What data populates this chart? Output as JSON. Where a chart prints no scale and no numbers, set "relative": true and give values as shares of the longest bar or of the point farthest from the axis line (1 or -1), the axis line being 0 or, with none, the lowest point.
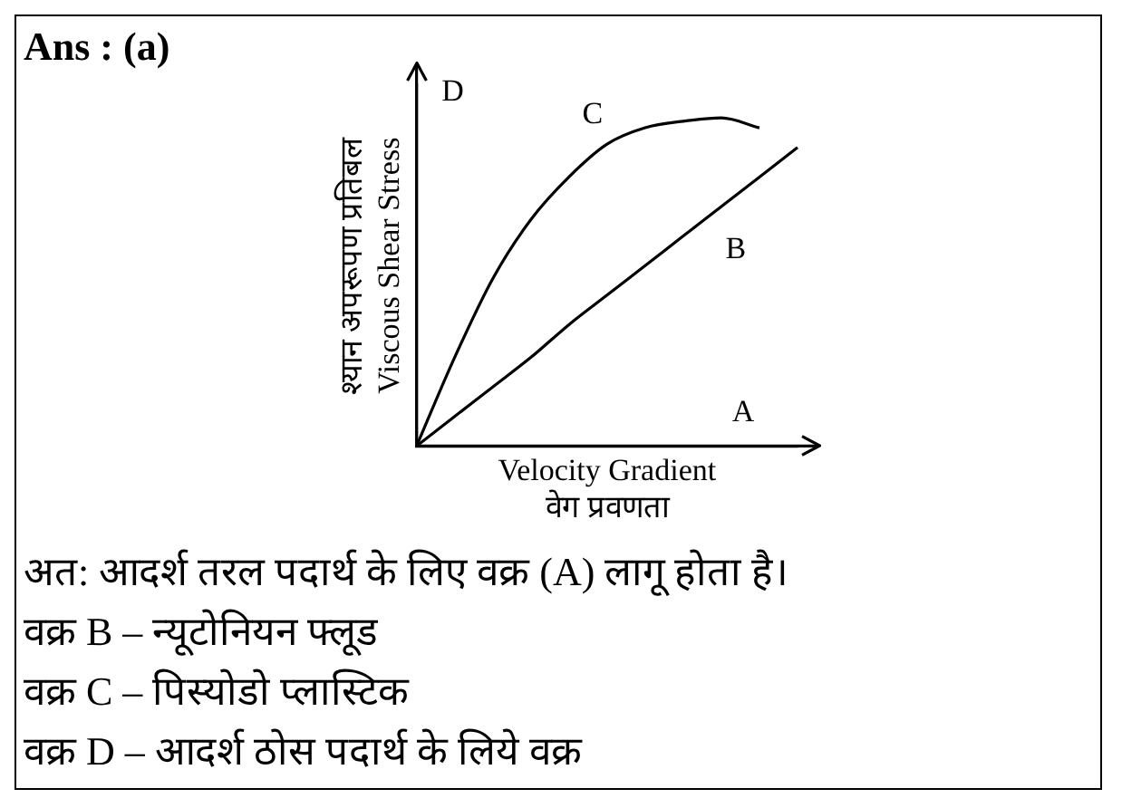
{
  "chart_data": {
    "type": "line",
    "title": "Ans :  (a)",
    "relative": true,
    "xlabel": "Velocity Gradient\nवेग प्रवणता",
    "ylabel": "श्यान अपरूपण प्रतिबल\nViscous Shear Stress",
    "categories": [
      null,
      null,
      null,
      null,
      null,
      null,
      null,
      null,
      null,
      null,
      null
    ],
    "series": [
      {
        "name": "B",
        "color": "#000000",
        "values": [
          0,
          0.09,
          0.18,
          0.27,
          0.37,
          0.46,
          0.55,
          0.64,
          0.73,
          0.82,
          0.91
        ]
      },
      {
        "name": "C",
        "color": "#000000",
        "values": [
          0,
          0.27,
          0.51,
          0.69,
          0.82,
          0.92,
          0.97,
          0.99,
          1,
          0.97,
          null
        ]
      }
    ],
    "annotations": [
      "A",
      "D",
      "अत: आदर्श तरल पदार्थ के लिए वक्र (A) लागू होता है।",
      "वक्र B – न्यूटोनियन फ्लूड",
      "वक्र C – पिस्योडो प्लास्टिक",
      "वक्र D – आदर्श ठोस पदार्थ के लिये वक्र"
    ],
    "legend": false,
    "grid": false,
    "marker": "none"
  }
}
